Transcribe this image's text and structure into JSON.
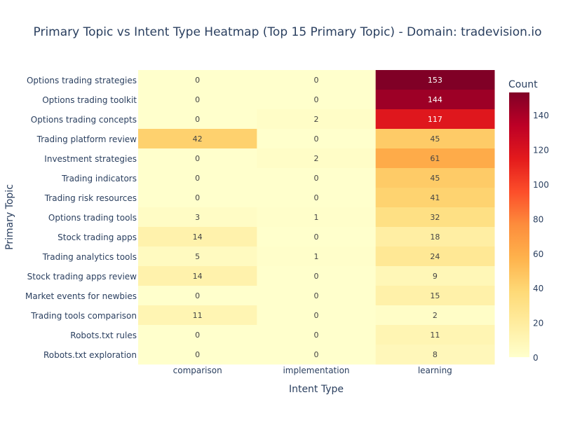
{
  "chart_data": {
    "type": "heatmap",
    "title": "Primary Topic vs Intent Type Heatmap (Top 15 Primary Topic) - Domain: tradevision.io",
    "xlabel": "Intent Type",
    "ylabel": "Primary Topic",
    "x_categories": [
      "comparison",
      "implementation",
      "learning"
    ],
    "y_categories": [
      "Options trading strategies",
      "Options trading toolkit",
      "Options trading concepts",
      "Trading platform review",
      "Investment strategies",
      "Trading indicators",
      "Trading risk resources",
      "Options trading tools",
      "Stock trading apps",
      "Trading analytics tools",
      "Stock trading apps review",
      "Market events for newbies",
      "Trading tools comparison",
      "Robots.txt rules",
      "Robots.txt exploration"
    ],
    "values": [
      [
        0,
        0,
        153
      ],
      [
        0,
        0,
        144
      ],
      [
        0,
        2,
        117
      ],
      [
        42,
        0,
        45
      ],
      [
        0,
        2,
        61
      ],
      [
        0,
        0,
        45
      ],
      [
        0,
        0,
        41
      ],
      [
        3,
        1,
        32
      ],
      [
        14,
        0,
        18
      ],
      [
        5,
        1,
        24
      ],
      [
        14,
        0,
        9
      ],
      [
        0,
        0,
        15
      ],
      [
        11,
        0,
        2
      ],
      [
        0,
        0,
        11
      ],
      [
        0,
        0,
        8
      ]
    ],
    "colorscale": "YlOrRd",
    "zrange": [
      0,
      153
    ],
    "colorbar": {
      "title": "Count",
      "ticks": [
        0,
        20,
        40,
        60,
        80,
        100,
        120,
        140
      ]
    },
    "text_color_dark": "#444444",
    "text_color_light": "#ffffff"
  }
}
